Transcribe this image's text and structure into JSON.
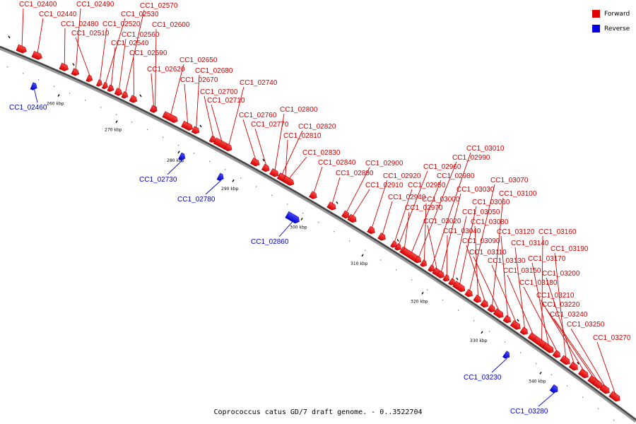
{
  "legend": {
    "forward_label": "Forward",
    "reverse_label": "Reverse",
    "forward_color": "#ff0000",
    "reverse_color": "#0000ff"
  },
  "footer": "Coprococcus catus GD/7 draft genome. - 0..3522704",
  "axis_ticks": [
    "260 kbp",
    "270 kbp",
    "280 kbp",
    "290 kbp",
    "300 kbp",
    "310 kbp",
    "320 kbp",
    "330 kbp",
    "340 kbp"
  ],
  "genes": [
    {
      "id": "CC1_02400",
      "strand": "+"
    },
    {
      "id": "CC1_02440",
      "strand": "+"
    },
    {
      "id": "CC1_02460",
      "strand": "-"
    },
    {
      "id": "CC1_02480",
      "strand": "+"
    },
    {
      "id": "CC1_02490",
      "strand": "+"
    },
    {
      "id": "CC1_02510",
      "strand": "+"
    },
    {
      "id": "CC1_02520",
      "strand": "+"
    },
    {
      "id": "CC1_02530",
      "strand": "+"
    },
    {
      "id": "CC1_02540",
      "strand": "+"
    },
    {
      "id": "CC1_02560",
      "strand": "+"
    },
    {
      "id": "CC1_02570",
      "strand": "+"
    },
    {
      "id": "CC1_02590",
      "strand": "+"
    },
    {
      "id": "CC1_02600",
      "strand": "+"
    },
    {
      "id": "CC1_02620",
      "strand": "+"
    },
    {
      "id": "CC1_02650",
      "strand": "+"
    },
    {
      "id": "CC1_02670",
      "strand": "+"
    },
    {
      "id": "CC1_02680",
      "strand": "+"
    },
    {
      "id": "CC1_02700",
      "strand": "+"
    },
    {
      "id": "CC1_02710",
      "strand": "+"
    },
    {
      "id": "CC1_02730",
      "strand": "-"
    },
    {
      "id": "CC1_02740",
      "strand": "+"
    },
    {
      "id": "CC1_02760",
      "strand": "+"
    },
    {
      "id": "CC1_02770",
      "strand": "+"
    },
    {
      "id": "CC1_02780",
      "strand": "-"
    },
    {
      "id": "CC1_02800",
      "strand": "+"
    },
    {
      "id": "CC1_02810",
      "strand": "+"
    },
    {
      "id": "CC1_02820",
      "strand": "+"
    },
    {
      "id": "CC1_02830",
      "strand": "+"
    },
    {
      "id": "CC1_02840",
      "strand": "+"
    },
    {
      "id": "CC1_02860",
      "strand": "-"
    },
    {
      "id": "CC1_02880",
      "strand": "+"
    },
    {
      "id": "CC1_02900",
      "strand": "+"
    },
    {
      "id": "CC1_02910",
      "strand": "+"
    },
    {
      "id": "CC1_02920",
      "strand": "+"
    },
    {
      "id": "CC1_02940",
      "strand": "+"
    },
    {
      "id": "CC1_02950",
      "strand": "+"
    },
    {
      "id": "CC1_02960",
      "strand": "+"
    },
    {
      "id": "CC1_02970",
      "strand": "+"
    },
    {
      "id": "CC1_02980",
      "strand": "+"
    },
    {
      "id": "CC1_02990",
      "strand": "+"
    },
    {
      "id": "CC1_03000",
      "strand": "+"
    },
    {
      "id": "CC1_03010",
      "strand": "+"
    },
    {
      "id": "CC1_03020",
      "strand": "+"
    },
    {
      "id": "CC1_03030",
      "strand": "+"
    },
    {
      "id": "CC1_03040",
      "strand": "+"
    },
    {
      "id": "CC1_03050",
      "strand": "+"
    },
    {
      "id": "CC1_03060",
      "strand": "+"
    },
    {
      "id": "CC1_03070",
      "strand": "+"
    },
    {
      "id": "CC1_03080",
      "strand": "+"
    },
    {
      "id": "CC1_03090",
      "strand": "+"
    },
    {
      "id": "CC1_03100",
      "strand": "+"
    },
    {
      "id": "CC1_03110",
      "strand": "+"
    },
    {
      "id": "CC1_03120",
      "strand": "+"
    },
    {
      "id": "CC1_03130",
      "strand": "+"
    },
    {
      "id": "CC1_03140",
      "strand": "+"
    },
    {
      "id": "CC1_03150",
      "strand": "+"
    },
    {
      "id": "CC1_03160",
      "strand": "+"
    },
    {
      "id": "CC1_03170",
      "strand": "+"
    },
    {
      "id": "CC1_03180",
      "strand": "+"
    },
    {
      "id": "CC1_03190",
      "strand": "+"
    },
    {
      "id": "CC1_03200",
      "strand": "+"
    },
    {
      "id": "CC1_03210",
      "strand": "+"
    },
    {
      "id": "CC1_03220",
      "strand": "+"
    },
    {
      "id": "CC1_03230",
      "strand": "-"
    },
    {
      "id": "CC1_03240",
      "strand": "+"
    },
    {
      "id": "CC1_03250",
      "strand": "+"
    },
    {
      "id": "CC1_03270",
      "strand": "+"
    },
    {
      "id": "CC1_03280",
      "strand": "-"
    }
  ]
}
